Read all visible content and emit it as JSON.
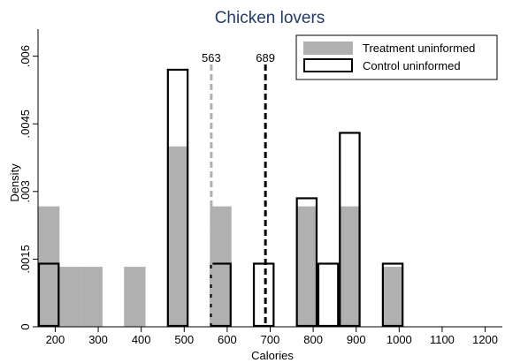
{
  "chart_data": {
    "type": "bar",
    "title": "Chicken lovers",
    "xlabel": "Calories",
    "ylabel": "Density",
    "xlim": [
      160,
      1240
    ],
    "ylim": [
      0,
      0.0066
    ],
    "x_ticks": [
      200,
      300,
      400,
      500,
      600,
      700,
      800,
      900,
      1000,
      1100,
      1200
    ],
    "y_ticks": [
      {
        "value": 0,
        "label": "0"
      },
      {
        "value": 0.0015,
        "label": ".0015"
      },
      {
        "value": 0.003,
        "label": ".003"
      },
      {
        "value": 0.0045,
        "label": ".0045"
      },
      {
        "value": 0.006,
        "label": ".006"
      }
    ],
    "series": [
      {
        "name": "Treatment uninformed",
        "style": "filled",
        "color": "#b0b0b0",
        "bars": [
          {
            "x0": 160,
            "x1": 210,
            "y": 0.00267
          },
          {
            "x0": 210,
            "x1": 260,
            "y": 0.00133
          },
          {
            "x0": 260,
            "x1": 310,
            "y": 0.00133
          },
          {
            "x0": 360,
            "x1": 410,
            "y": 0.00133
          },
          {
            "x0": 460,
            "x1": 510,
            "y": 0.004
          },
          {
            "x0": 560,
            "x1": 610,
            "y": 0.00267
          },
          {
            "x0": 760,
            "x1": 810,
            "y": 0.00267
          },
          {
            "x0": 860,
            "x1": 910,
            "y": 0.00267
          },
          {
            "x0": 960,
            "x1": 1010,
            "y": 0.00133
          }
        ]
      },
      {
        "name": "Control uninformed",
        "style": "outline",
        "color": "#000000",
        "bars": [
          {
            "x0": 160,
            "x1": 210,
            "y": 0.0014
          },
          {
            "x0": 460,
            "x1": 510,
            "y": 0.0057
          },
          {
            "x0": 560,
            "x1": 610,
            "y": 0.0014
          },
          {
            "x0": 660,
            "x1": 710,
            "y": 0.0014
          },
          {
            "x0": 760,
            "x1": 810,
            "y": 0.00285
          },
          {
            "x0": 810,
            "x1": 860,
            "y": 0.0014
          },
          {
            "x0": 860,
            "x1": 910,
            "y": 0.0043
          },
          {
            "x0": 960,
            "x1": 1010,
            "y": 0.0014
          }
        ]
      }
    ],
    "reference_lines": [
      {
        "x": 563,
        "label": "563",
        "color": "#b0b0b0",
        "dash": "dashed"
      },
      {
        "x": 689,
        "label": "689",
        "color": "#000000",
        "dash": "dashed"
      }
    ],
    "legend_position": "top-right",
    "grid": false
  }
}
